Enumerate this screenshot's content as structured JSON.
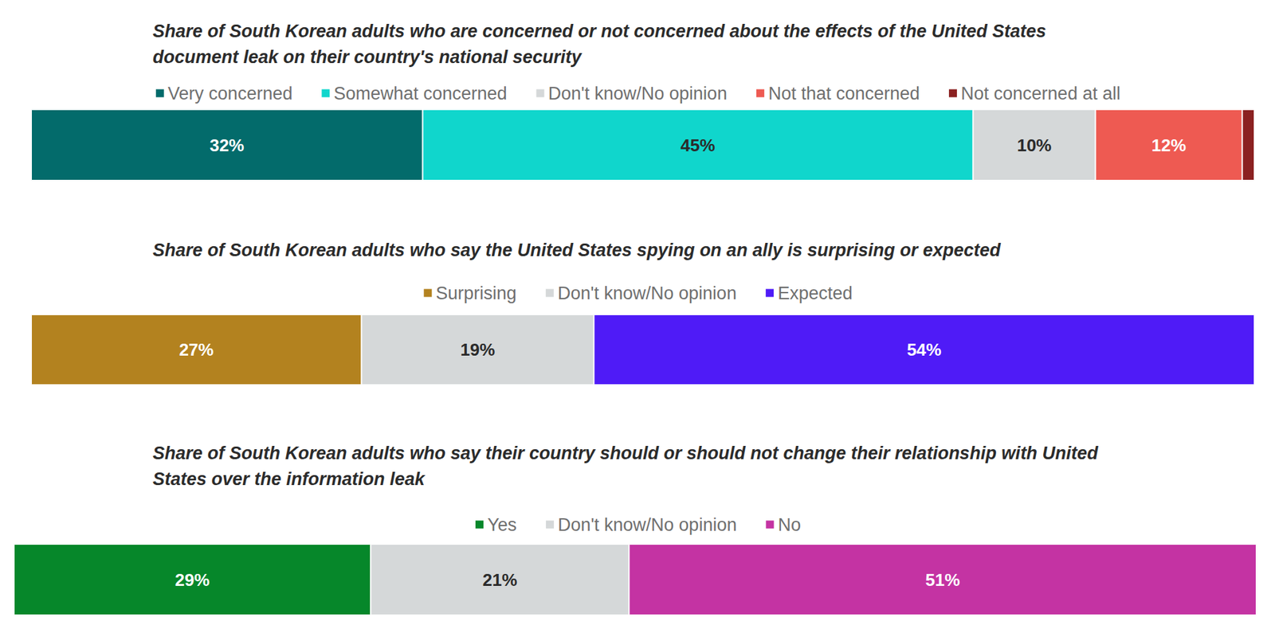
{
  "chart_data": [
    {
      "type": "bar",
      "orientation": "horizontal",
      "stacked": true,
      "data_labels": true,
      "tick_labels": false,
      "grid": false,
      "legend": "top",
      "title": "Share of South Korean adults who are concerned or not concerned about the effects of the United States document leak on their country's national security",
      "xlim": [
        0,
        100
      ],
      "series": [
        {
          "name": "Very concerned",
          "color": "#036b6b",
          "values": [
            32
          ],
          "value_labels": [
            "32%"
          ]
        },
        {
          "name": "Somewhat concerned",
          "color": "#10d6cc",
          "values": [
            45
          ],
          "value_labels": [
            "45%"
          ]
        },
        {
          "name": "Don't know/No opinion",
          "color": "#d5d8d9",
          "values": [
            10
          ],
          "value_labels": [
            "10%"
          ]
        },
        {
          "name": "Not that concerned",
          "color": "#ee5a52",
          "values": [
            12
          ],
          "value_labels": [
            "12%"
          ]
        },
        {
          "name": "Not concerned at all",
          "color": "#8b2121",
          "values": [
            1
          ],
          "value_labels": [
            null
          ]
        }
      ]
    },
    {
      "type": "bar",
      "orientation": "horizontal",
      "stacked": true,
      "data_labels": true,
      "tick_labels": false,
      "grid": false,
      "legend": "top",
      "title": "Share of South Korean adults who say the United States spying on an ally is surprising or expected",
      "xlim": [
        0,
        100
      ],
      "series": [
        {
          "name": "Surprising",
          "color": "#b3821f",
          "values": [
            27
          ],
          "value_labels": [
            "27%"
          ]
        },
        {
          "name": "Don't know/No opinion",
          "color": "#d5d8d9",
          "values": [
            19
          ],
          "value_labels": [
            "19%"
          ]
        },
        {
          "name": "Expected",
          "color": "#4f1bf7",
          "values": [
            54
          ],
          "value_labels": [
            "54%"
          ]
        }
      ]
    },
    {
      "type": "bar",
      "orientation": "horizontal",
      "stacked": true,
      "data_labels": true,
      "tick_labels": false,
      "grid": false,
      "legend": "top",
      "title": "Share of South Korean adults who say their country should or should not change their relationship with United States over the information leak",
      "xlim": [
        0,
        101
      ],
      "series": [
        {
          "name": "Yes",
          "color": "#06872a",
          "values": [
            29
          ],
          "value_labels": [
            "29%"
          ]
        },
        {
          "name": "Don't know/No opinion",
          "color": "#d5d8d9",
          "values": [
            21
          ],
          "value_labels": [
            "21%"
          ]
        },
        {
          "name": "No",
          "color": "#c433a3",
          "values": [
            51
          ],
          "value_labels": [
            "51%"
          ]
        }
      ]
    }
  ]
}
